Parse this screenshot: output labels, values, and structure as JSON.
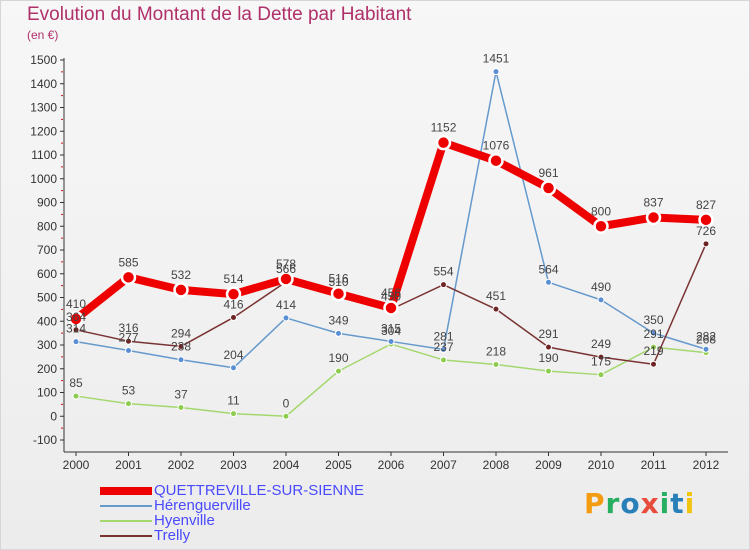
{
  "title": "Evolution du Montant de la Dette par Habitant",
  "subtitle": "(en €)",
  "logo": {
    "text": "Proxiti",
    "colors": [
      "#f39c12",
      "#27ae60",
      "#2980b9",
      "#e74c3c",
      "#27ae60",
      "#2980b9",
      "#f1c40f"
    ]
  },
  "chart_data": {
    "type": "line",
    "x": [
      "2000",
      "2001",
      "2002",
      "2003",
      "2004",
      "2005",
      "2006",
      "2007",
      "2008",
      "2009",
      "2010",
      "2011",
      "2012"
    ],
    "ylim": [
      -100,
      1500
    ],
    "yticks": [
      -100,
      0,
      100,
      200,
      300,
      400,
      500,
      600,
      700,
      800,
      900,
      1000,
      1100,
      1200,
      1300,
      1400,
      1500
    ],
    "grid": false,
    "legend_position": "bottom-left",
    "series": [
      {
        "name": "QUETTREVILLE-SUR-SIENNE",
        "color": "#ee0000",
        "point_color": "#ee0000",
        "values": [
          410,
          585,
          532,
          514,
          578,
          516,
          456,
          1152,
          1076,
          961,
          800,
          837,
          827
        ]
      },
      {
        "name": "Hérenguerville",
        "color": "#6699cc",
        "point_color": "#5b8fd4",
        "values": [
          314,
          277,
          238,
          204,
          414,
          349,
          315,
          281,
          1451,
          564,
          490,
          350,
          282
        ]
      },
      {
        "name": "Hyenville",
        "color": "#a4d86e",
        "point_color": "#8ecc4f",
        "values": [
          85,
          53,
          37,
          11,
          0,
          190,
          304,
          237,
          218,
          190,
          175,
          291,
          268
        ]
      },
      {
        "name": "Trelly",
        "color": "#7a3333",
        "point_color": "#6e2424",
        "values": [
          364,
          316,
          294,
          416,
          566,
          510,
          450,
          554,
          451,
          291,
          249,
          219,
          726
        ]
      }
    ]
  }
}
